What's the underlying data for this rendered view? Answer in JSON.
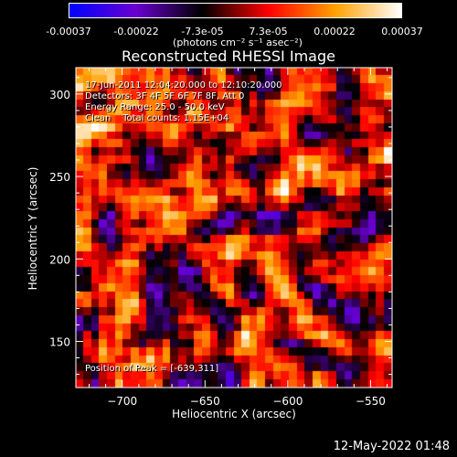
{
  "colorbar": {
    "ticks": [
      "-0.00037",
      "-0.00022",
      "-7.3e-05",
      "7.3e-05",
      "0.00022",
      "0.00037"
    ],
    "units_label": "(photons cm⁻² s⁻¹ asec⁻²)",
    "range": [
      -0.00037,
      0.00037
    ],
    "colors": [
      "#0000ff",
      "#6a00d0",
      "#000000",
      "#ff0000",
      "#ffa000",
      "#ffffff"
    ]
  },
  "annotations": {
    "time": "17-Jun-2011 12:04:20.000 to 12:10:20.000",
    "detectors": "Detectors: 3F 4F 5F 6F 7F 8F, Att 0",
    "energy": "Energy Range: 25.0 - 50.0 keV",
    "clean": "Clean    Total counts: 1.15E+04",
    "peak": "Position of Peak = [-639,311]"
  },
  "footer": {
    "timestamp": "12-May-2022 01:48"
  },
  "chart_data": {
    "type": "heatmap",
    "title": "Reconstructed RHESSI Image",
    "xlabel": "Heliocentric X (arcsec)",
    "ylabel": "Heliocentric Y (arcsec)",
    "xlim": [
      -728,
      -537
    ],
    "ylim": [
      122,
      316
    ],
    "xticks": [
      -700,
      -650,
      -600,
      -550
    ],
    "yticks": [
      150,
      200,
      250,
      300
    ],
    "xtick_labels": [
      "−700",
      "−650",
      "−600",
      "−550"
    ],
    "ytick_labels": [
      "150",
      "200",
      "250",
      "300"
    ],
    "grid": false,
    "colormap": "blue-purple-black-red-orange-white",
    "peak_position": [
      -639,
      311
    ]
  }
}
